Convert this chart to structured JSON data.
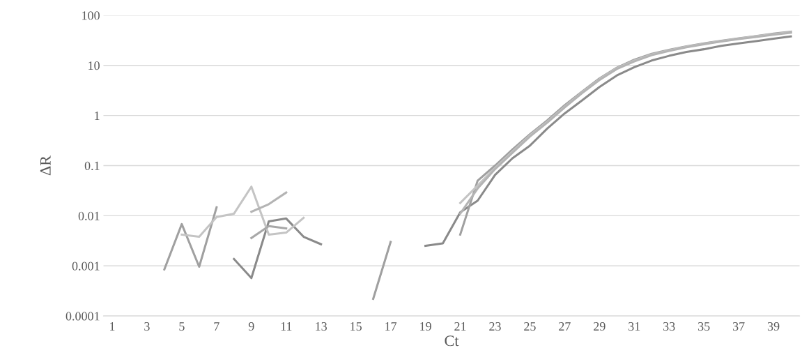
{
  "chart_data": {
    "type": "line",
    "xlabel": "Ct",
    "ylabel": "ΔR",
    "log": "y",
    "grid": "y",
    "marker": "none",
    "line_style": "solid",
    "categories": [
      "1",
      null,
      "3",
      null,
      "5",
      null,
      "7",
      null,
      "9",
      null,
      "11",
      null,
      "13",
      null,
      "15",
      null,
      "17",
      null,
      "19",
      null,
      "21",
      null,
      "23",
      null,
      "25",
      null,
      "27",
      null,
      "29",
      null,
      "31",
      null,
      "33",
      null,
      "35",
      null,
      "37",
      null,
      "39",
      null
    ],
    "ylim": [
      0.0001,
      100
    ],
    "yticks": [
      0.0001,
      0.001,
      0.01,
      0.1,
      1,
      10,
      100
    ],
    "series": [
      {
        "color": "#8a8a8a",
        "values": [
          null,
          null,
          null,
          null,
          null,
          null,
          null,
          0.00137,
          0.00057,
          0.0077,
          0.0088,
          0.0038,
          0.0027,
          null,
          null,
          null,
          null,
          null,
          0.0025,
          0.0028,
          0.0117,
          0.02,
          0.065,
          0.14,
          0.25,
          0.55,
          1.1,
          2.0,
          3.7,
          6.3,
          9.2,
          12.5,
          15.5,
          18.5,
          21,
          24.5,
          27.5,
          30.5,
          34,
          38
        ]
      },
      {
        "color": "#a0a0a0",
        "values": [
          null,
          null,
          null,
          0.00085,
          0.0068,
          0.00096,
          0.0147,
          null,
          null,
          null,
          null,
          null,
          null,
          null,
          null,
          0.00022,
          0.003,
          null,
          null,
          null,
          0.0042,
          0.05,
          0.1,
          0.21,
          0.42,
          0.8,
          1.6,
          3.0,
          5.5,
          9.0,
          13,
          17,
          20.5,
          24,
          27.5,
          31,
          34.5,
          38.5,
          43,
          47
        ]
      },
      {
        "color": "#c4c4c4",
        "values": [
          null,
          null,
          null,
          null,
          0.0042,
          0.0038,
          0.0094,
          0.011,
          0.038,
          0.0042,
          0.0046,
          0.0091,
          null,
          null,
          null,
          null,
          null,
          null,
          null,
          null,
          0.018,
          0.04,
          0.09,
          0.19,
          0.4,
          0.75,
          1.5,
          2.9,
          5.3,
          8.8,
          12.5,
          16.5,
          20,
          23.5,
          27,
          30.5,
          34,
          38,
          42,
          46
        ]
      },
      {
        "color": "#a8a8a8",
        "values": [
          null,
          null,
          null,
          null,
          null,
          null,
          null,
          null,
          0.0036,
          0.0062,
          0.0056,
          null,
          null,
          null,
          null,
          null,
          null,
          null,
          null,
          null,
          null,
          null,
          null,
          null,
          null,
          null,
          null,
          null,
          null,
          null,
          null,
          null,
          null,
          null,
          null,
          null,
          null,
          null,
          null,
          null
        ]
      },
      {
        "color": "#b4b4b4",
        "values": [
          null,
          null,
          null,
          null,
          null,
          null,
          null,
          null,
          0.012,
          0.017,
          0.029,
          null,
          null,
          null,
          null,
          null,
          null,
          null,
          null,
          null,
          0.011,
          0.035,
          0.085,
          0.18,
          0.38,
          0.72,
          1.45,
          2.8,
          5.1,
          8.5,
          12,
          16,
          19.5,
          23,
          26.5,
          30,
          33.5,
          37,
          41,
          45
        ]
      }
    ]
  }
}
